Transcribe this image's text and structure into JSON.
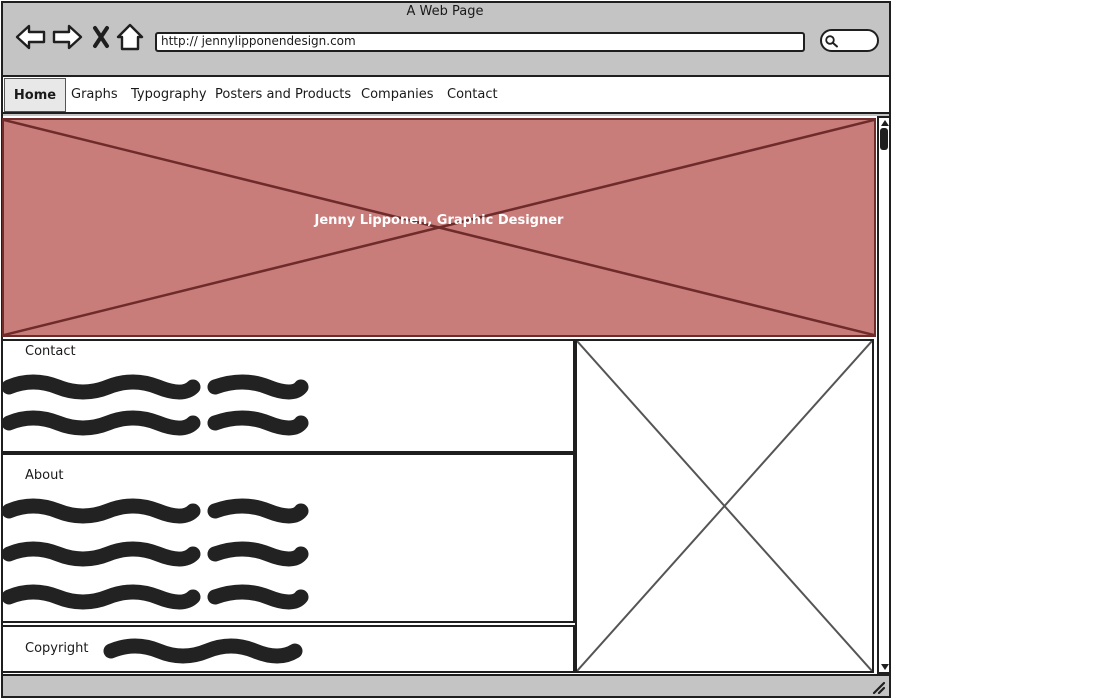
{
  "window": {
    "title": "A Web Page",
    "url": "http:// jennylipponendesign.com"
  },
  "icons": {
    "back": "back-arrow-icon",
    "forward": "forward-arrow-icon",
    "stop": "close-icon",
    "home": "home-icon",
    "search": "search-icon"
  },
  "menu": {
    "items": [
      {
        "label": "Home",
        "selected": true
      },
      {
        "label": "Graphs"
      },
      {
        "label": "Typography"
      },
      {
        "label": "Posters and Products"
      },
      {
        "label": "Companies"
      },
      {
        "label": "Contact"
      }
    ]
  },
  "hero": {
    "caption": "Jenny Lipponen, Graphic Designer"
  },
  "panels": {
    "contact_title": "Contact",
    "about_title": "About",
    "footer_title": "Copyright"
  },
  "colors": {
    "hero_fill": "#c87d7b",
    "hero_stroke": "#6e2b2a",
    "frame": "#c4c4c4",
    "scribble": "#222222"
  }
}
